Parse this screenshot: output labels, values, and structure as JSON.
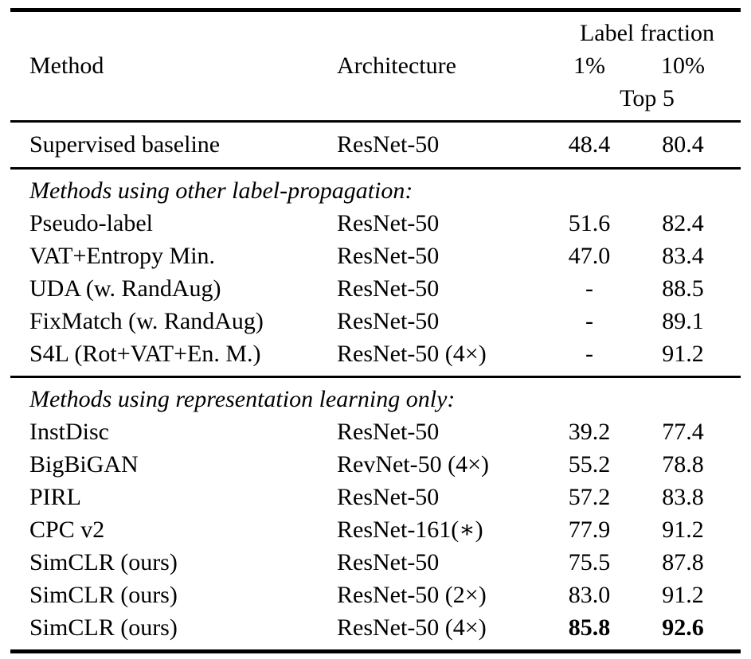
{
  "page": {
    "background_color": "#ffffff",
    "text_color": "#000000",
    "rule_color": "#000000"
  },
  "table": {
    "header": {
      "group_label": "Label fraction",
      "col_method": "Method",
      "col_architecture": "Architecture",
      "col_1pct": "1%",
      "col_10pct": "10%",
      "metric_label": "Top 5"
    },
    "baseline_row": {
      "method": "Supervised baseline",
      "architecture": "ResNet-50",
      "p1": "48.4",
      "p10": "80.4"
    },
    "sections": [
      {
        "title": "Methods using other label-propagation:",
        "rows": [
          {
            "method": "Pseudo-label",
            "architecture": "ResNet-50",
            "p1": "51.6",
            "p10": "82.4"
          },
          {
            "method": "VAT+Entropy Min.",
            "architecture": "ResNet-50",
            "p1": "47.0",
            "p10": "83.4"
          },
          {
            "method": "UDA (w. RandAug)",
            "architecture": "ResNet-50",
            "p1": "-",
            "p10": "88.5"
          },
          {
            "method": "FixMatch (w. RandAug)",
            "architecture": "ResNet-50",
            "p1": "-",
            "p10": "89.1"
          },
          {
            "method": "S4L (Rot+VAT+En. M.)",
            "architecture": "ResNet-50 (4×)",
            "p1": "-",
            "p10": "91.2"
          }
        ]
      },
      {
        "title": "Methods using representation learning only:",
        "rows": [
          {
            "method": "InstDisc",
            "architecture": "ResNet-50",
            "p1": "39.2",
            "p10": "77.4"
          },
          {
            "method": "BigBiGAN",
            "architecture": "RevNet-50 (4×)",
            "p1": "55.2",
            "p10": "78.8"
          },
          {
            "method": "PIRL",
            "architecture": "ResNet-50",
            "p1": "57.2",
            "p10": "83.8"
          },
          {
            "method": "CPC v2",
            "architecture": "ResNet-161(∗)",
            "p1": "77.9",
            "p10": "91.2"
          },
          {
            "method": "SimCLR (ours)",
            "architecture": "ResNet-50",
            "p1": "75.5",
            "p10": "87.8"
          },
          {
            "method": "SimCLR (ours)",
            "architecture": "ResNet-50 (2×)",
            "p1": "83.0",
            "p10": "91.2"
          },
          {
            "method": "SimCLR (ours)",
            "architecture": "ResNet-50 (4×)",
            "p1": "85.8",
            "p10": "92.6"
          }
        ]
      }
    ]
  }
}
